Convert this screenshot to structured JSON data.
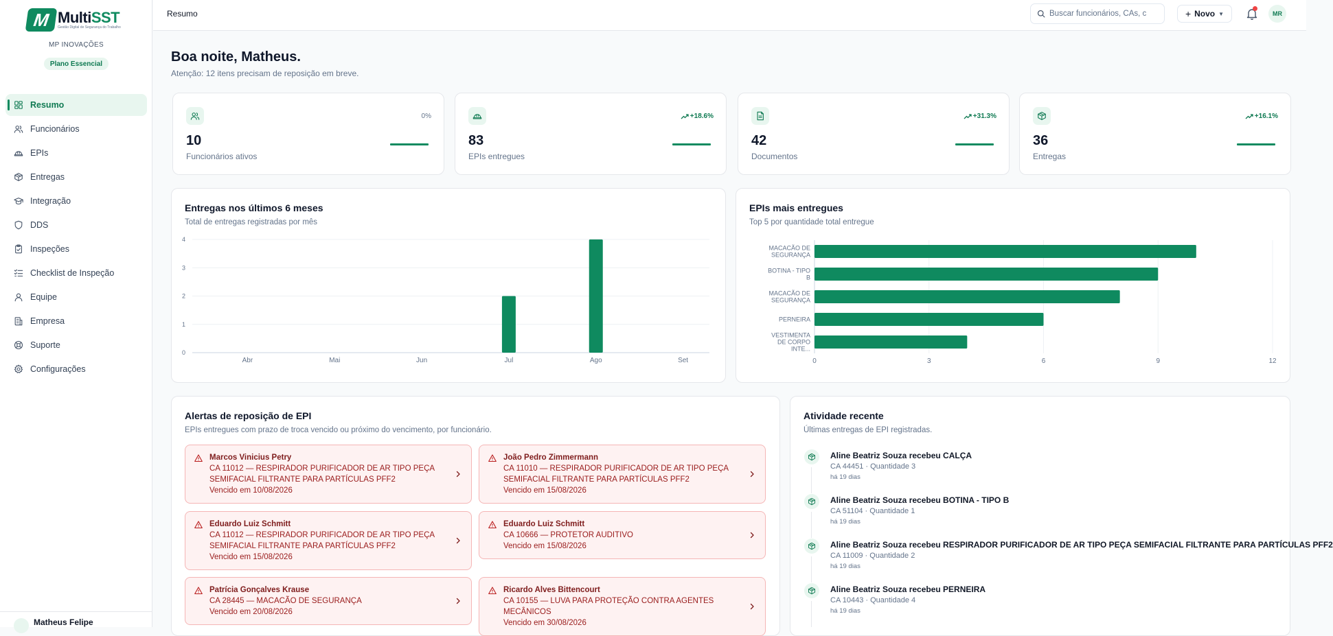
{
  "brand": {
    "logo_letter": "M",
    "name_a": "Multi",
    "name_b": "SST",
    "tagline": "Gestão Digital de Segurança do Trabalho",
    "accent": "#0f8a5f",
    "accent_light": "#e8f6ef",
    "danger": "#991b1b"
  },
  "org": {
    "name": "MP INOVAÇÕES",
    "plan": "Plano Essencial"
  },
  "sidebar": {
    "items": [
      {
        "label": "Resumo",
        "icon": "dashboard-icon",
        "active": true
      },
      {
        "label": "Funcionários",
        "icon": "users-icon"
      },
      {
        "label": "EPIs",
        "icon": "helmet-icon"
      },
      {
        "label": "Entregas",
        "icon": "package-icon"
      },
      {
        "label": "Integração",
        "icon": "graduation-cap-icon"
      },
      {
        "label": "DDS",
        "icon": "shield-icon"
      },
      {
        "label": "Inspeções",
        "icon": "clipboard-check-icon"
      },
      {
        "label": "Checklist de Inspeção",
        "icon": "list-checks-icon"
      },
      {
        "label": "Equipe",
        "icon": "user-round-icon"
      },
      {
        "label": "Empresa",
        "icon": "building-icon"
      },
      {
        "label": "Suporte",
        "icon": "life-buoy-icon"
      },
      {
        "label": "Configurações",
        "icon": "gear-icon"
      }
    ],
    "user_name": "Matheus Felipe"
  },
  "topbar": {
    "breadcrumb": "Resumo",
    "search_placeholder": "Buscar funcionários, CAs, c",
    "new_label": "Novo",
    "avatar_initials": "MR"
  },
  "greeting": {
    "title": "Boa noite, Matheus.",
    "attention": "Atenção: 12 itens precisam de reposição em breve."
  },
  "stats": [
    {
      "value": "10",
      "label": "Funcionários ativos",
      "trend": "0%",
      "trend_up": false,
      "icon": "users-icon"
    },
    {
      "value": "83",
      "label": "EPIs entregues",
      "trend": "+18.6%",
      "trend_up": true,
      "icon": "helmet-icon"
    },
    {
      "value": "42",
      "label": "Documentos",
      "trend": "+31.3%",
      "trend_up": true,
      "icon": "document-icon"
    },
    {
      "value": "36",
      "label": "Entregas",
      "trend": "+16.1%",
      "trend_up": true,
      "icon": "package-icon"
    }
  ],
  "deliveries_panel": {
    "title": "Entregas nos últimos 6 meses",
    "subtitle": "Total de entregas registradas por mês"
  },
  "top_epis_panel": {
    "title": "EPIs mais entregues",
    "subtitle": "Top 5 por quantidade total entregue"
  },
  "chart_data": [
    {
      "type": "bar",
      "orientation": "vertical",
      "categories": [
        "Abr",
        "Mai",
        "Jun",
        "Jul",
        "Ago",
        "Set"
      ],
      "values": [
        0,
        0,
        0,
        2,
        4,
        0
      ],
      "yticks": [
        "0",
        "1",
        "2",
        "3",
        "4"
      ],
      "ylim": [
        0,
        4
      ],
      "grid": true,
      "color": "#0f8a5f"
    },
    {
      "type": "bar",
      "orientation": "horizontal",
      "categories": [
        [
          "MACACÃO DE",
          "SEGURANÇA"
        ],
        [
          "BOTINA - TIPO",
          "B"
        ],
        [
          "MACACÃO DE",
          "SEGURANÇA"
        ],
        [
          "PERNEIRA"
        ],
        [
          "VESTIMENTA",
          "DE CORPO",
          "INTE..."
        ]
      ],
      "values": [
        10,
        9,
        8,
        6,
        4
      ],
      "xticks": [
        "0",
        "3",
        "6",
        "9",
        "12"
      ],
      "xlim": [
        0,
        12
      ],
      "grid": true,
      "color": "#0f8a5f"
    }
  ],
  "alerts_panel": {
    "title": "Alertas de reposição de EPI",
    "subtitle": "EPIs entregues com prazo de troca vencido ou próximo do vencimento, por funcionário.",
    "items": [
      {
        "name": "Marcos Vinicius Petry",
        "item": "CA 11012 — RESPIRADOR PURIFICADOR DE AR TIPO PEÇA SEMIFACIAL FILTRANTE PARA PARTÍCULAS PFF2",
        "due": "Vencido em 10/08/2026"
      },
      {
        "name": "João Pedro Zimmermann",
        "item": "CA 11010 — RESPIRADOR PURIFICADOR DE AR TIPO PEÇA SEMIFACIAL FILTRANTE PARA PARTÍCULAS PFF2",
        "due": "Vencido em 15/08/2026"
      },
      {
        "name": "Eduardo Luiz Schmitt",
        "item": "CA 11012 — RESPIRADOR PURIFICADOR DE AR TIPO PEÇA SEMIFACIAL FILTRANTE PARA PARTÍCULAS PFF2",
        "due": "Vencido em 15/08/2026"
      },
      {
        "name": "Eduardo Luiz Schmitt",
        "item": "CA 10666 — PROTETOR AUDITIVO",
        "due": "Vencido em 15/08/2026"
      },
      {
        "name": "Patrícia Gonçalves Krause",
        "item": "CA 28445 — MACACÃO DE SEGURANÇA",
        "due": "Vencido em 20/08/2026"
      },
      {
        "name": "Ricardo Alves Bittencourt",
        "item": "CA 10155 — LUVA PARA PROTEÇÃO CONTRA AGENTES MECÂNICOS",
        "due": "Vencido em 30/08/2026"
      }
    ]
  },
  "activity_panel": {
    "title": "Atividade recente",
    "subtitle": "Últimas entregas de EPI registradas.",
    "items": [
      {
        "title": "Aline Beatriz Souza recebeu CALÇA",
        "meta": "CA 44451 · Quantidade 3",
        "time": "há 19 dias"
      },
      {
        "title": "Aline Beatriz Souza recebeu BOTINA - TIPO B",
        "meta": "CA 51104 · Quantidade 1",
        "time": "há 19 dias"
      },
      {
        "title": "Aline Beatriz Souza recebeu RESPIRADOR PURIFICADOR DE AR TIPO PEÇA SEMIFACIAL FILTRANTE PARA PARTÍCULAS PFF2",
        "meta": "CA 11009 · Quantidade 2",
        "time": "há 19 dias"
      },
      {
        "title": "Aline Beatriz Souza recebeu PERNEIRA",
        "meta": "CA 10443 · Quantidade 4",
        "time": "há 19 dias"
      }
    ]
  }
}
